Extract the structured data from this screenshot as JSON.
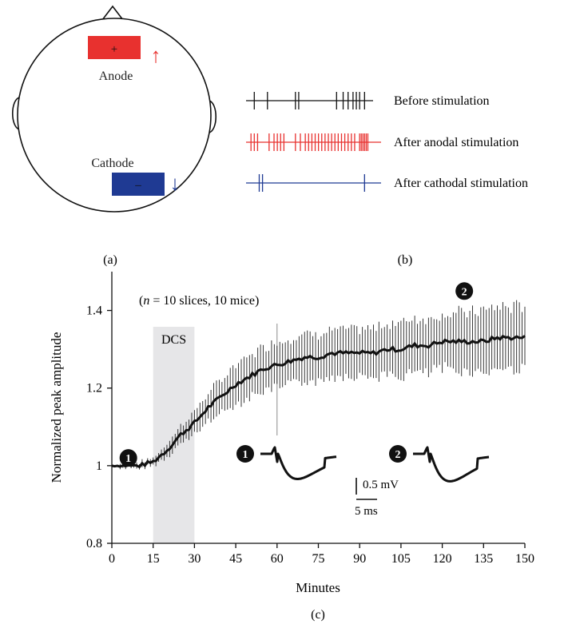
{
  "panel_a": {
    "label": "(a)",
    "anode": {
      "symbol": "+",
      "label": "Anode",
      "color": "#e8312f"
    },
    "cathode": {
      "symbol": "–",
      "label": "Cathode",
      "color": "#1f3a93"
    },
    "arrow_up": "↑",
    "arrow_down": "↓"
  },
  "panel_b": {
    "label": "(b)",
    "rows": [
      {
        "label": "Before stimulation",
        "color": "#111111",
        "spikes": [
          0.05,
          0.13,
          0.3,
          0.32,
          0.55,
          0.59,
          0.62,
          0.65,
          0.67,
          0.69,
          0.72
        ]
      },
      {
        "label": "After anodal stimulation",
        "color": "#e8312f",
        "spikes": [
          0.03,
          0.05,
          0.07,
          0.14,
          0.17,
          0.19,
          0.21,
          0.23,
          0.3,
          0.33,
          0.36,
          0.38,
          0.4,
          0.42,
          0.44,
          0.46,
          0.48,
          0.5,
          0.52,
          0.54,
          0.56,
          0.58,
          0.6,
          0.62,
          0.64,
          0.66,
          0.69,
          0.7,
          0.71,
          0.72,
          0.73,
          0.74
        ]
      },
      {
        "label": "After cathodal stimulation",
        "color": "#1f3a93",
        "spikes": [
          0.08,
          0.1,
          0.72
        ]
      }
    ]
  },
  "chart_data": {
    "type": "line",
    "panel_label": "(c)",
    "annotation": "(n = 10 slices, 10 mice)",
    "annotation_parts": {
      "open": "(",
      "n": "n",
      "rest": " = 10 slices, 10 mice)"
    },
    "xlabel": "Minutes",
    "ylabel": "Normalized peak amplitude",
    "xlim": [
      0,
      150
    ],
    "ylim": [
      0.8,
      1.5
    ],
    "xticks": [
      0,
      15,
      30,
      45,
      60,
      75,
      90,
      105,
      120,
      135,
      150
    ],
    "yticks": [
      0.8,
      1,
      1.2,
      1.4
    ],
    "ytick_labels": [
      "0.8",
      "1",
      "1.2",
      "1.4"
    ],
    "shaded_region": {
      "label": "DCS",
      "x": [
        15,
        30
      ],
      "color": "#e6e6e8"
    },
    "vertical_marker_x": 60,
    "markers": [
      {
        "label": "1",
        "x": 6,
        "y": 1.02
      },
      {
        "label": "2",
        "x": 128,
        "y": 1.45
      }
    ],
    "series": [
      {
        "points": [
          [
            0,
            1.0
          ],
          [
            5,
            1.0
          ],
          [
            10,
            1.0
          ],
          [
            15,
            1.01
          ],
          [
            20,
            1.04
          ],
          [
            25,
            1.08
          ],
          [
            30,
            1.11
          ],
          [
            35,
            1.15
          ],
          [
            40,
            1.18
          ],
          [
            45,
            1.21
          ],
          [
            50,
            1.23
          ],
          [
            55,
            1.25
          ],
          [
            60,
            1.26
          ],
          [
            65,
            1.27
          ],
          [
            70,
            1.28
          ],
          [
            75,
            1.28
          ],
          [
            80,
            1.29
          ],
          [
            85,
            1.29
          ],
          [
            90,
            1.29
          ],
          [
            95,
            1.29
          ],
          [
            100,
            1.3
          ],
          [
            105,
            1.3
          ],
          [
            110,
            1.31
          ],
          [
            115,
            1.31
          ],
          [
            120,
            1.32
          ],
          [
            125,
            1.32
          ],
          [
            130,
            1.32
          ],
          [
            135,
            1.32
          ],
          [
            140,
            1.33
          ],
          [
            145,
            1.33
          ],
          [
            150,
            1.33
          ]
        ],
        "error": [
          [
            0,
            0.005
          ],
          [
            15,
            0.01
          ],
          [
            30,
            0.03
          ],
          [
            45,
            0.05
          ],
          [
            60,
            0.06
          ],
          [
            75,
            0.06
          ],
          [
            90,
            0.06
          ],
          [
            105,
            0.07
          ],
          [
            120,
            0.07
          ],
          [
            135,
            0.08
          ],
          [
            150,
            0.08
          ]
        ]
      }
    ],
    "insets": [
      {
        "label": "1",
        "peak_mv": -0.55
      },
      {
        "label": "2",
        "peak_mv": -0.6
      }
    ],
    "scale_bar": {
      "amplitude": "0.5 mV",
      "time": "5 ms"
    }
  }
}
